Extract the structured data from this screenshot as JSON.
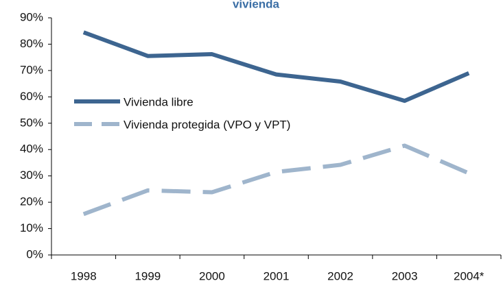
{
  "chart_data": {
    "type": "line",
    "title": "vivienda",
    "categories": [
      "1998",
      "1999",
      "2000",
      "2001",
      "2002",
      "2003",
      "2004*"
    ],
    "series": [
      {
        "name": "Vivienda libre",
        "color": "#3d6590",
        "dashed": false,
        "values": [
          84.5,
          75.5,
          76.2,
          68.5,
          65.8,
          58.5,
          69
        ]
      },
      {
        "name": "Vivienda protegida (VPO y VPT)",
        "color": "#9fb5cc",
        "dashed": true,
        "values": [
          15.5,
          24.5,
          23.8,
          31.5,
          34.2,
          41.5,
          31
        ]
      }
    ],
    "ylim": [
      0,
      90
    ],
    "yticks": [
      {
        "value": 0,
        "label": "0%"
      },
      {
        "value": 10,
        "label": "10%"
      },
      {
        "value": 20,
        "label": "20%"
      },
      {
        "value": 30,
        "label": "30%"
      },
      {
        "value": 40,
        "label": "40%"
      },
      {
        "value": 50,
        "label": "50%"
      },
      {
        "value": 60,
        "label": "60%"
      },
      {
        "value": 70,
        "label": "70%"
      },
      {
        "value": 80,
        "label": "80%"
      },
      {
        "value": 90,
        "label": "90%"
      }
    ],
    "grid": false
  }
}
